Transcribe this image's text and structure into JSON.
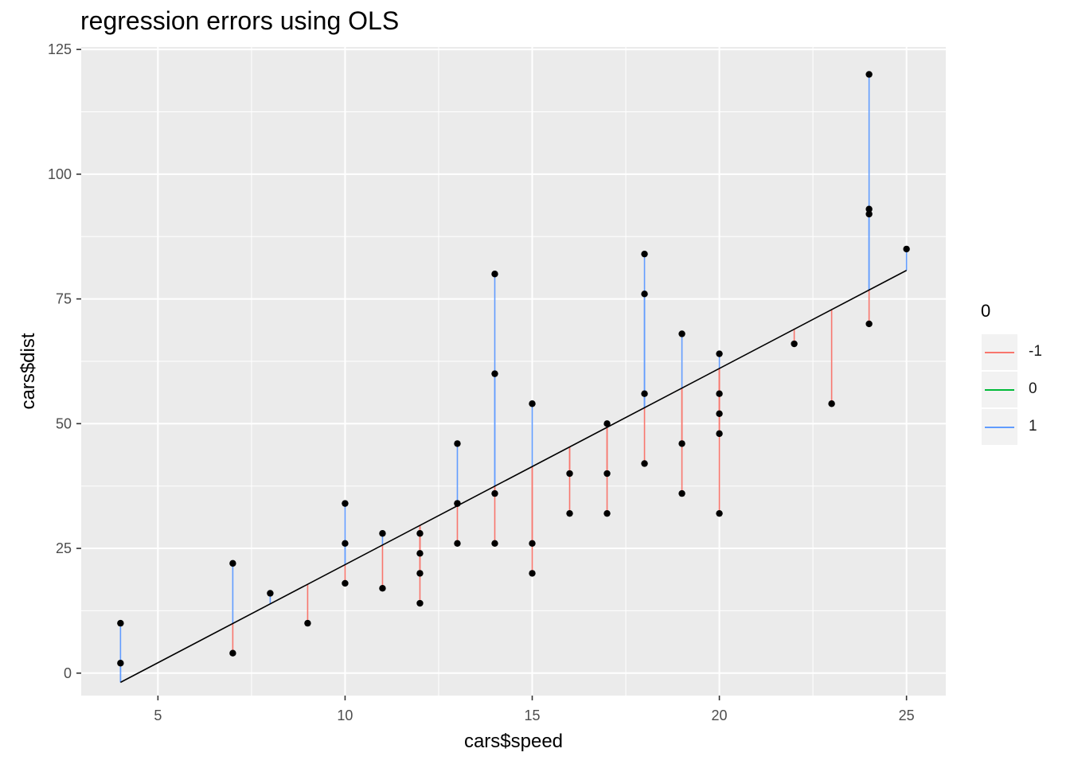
{
  "chart_data": {
    "type": "scatter",
    "title": "regression errors using OLS",
    "xlabel": "cars$speed",
    "ylabel": "cars$dist",
    "xlim": [
      2.95,
      26.05
    ],
    "ylim": [
      -4.5,
      125.5
    ],
    "x_ticks": [
      5,
      10,
      15,
      20,
      25
    ],
    "x_tick_labels": [
      "5",
      "10",
      "15",
      "20",
      "25"
    ],
    "y_ticks": [
      0,
      25,
      50,
      75,
      100,
      125
    ],
    "y_tick_labels": [
      "0",
      "25",
      "50",
      "75",
      "100",
      "125"
    ],
    "grid": true,
    "background": "#ebebeb",
    "legend": {
      "title": "0",
      "position": "right",
      "entries": [
        {
          "label": "-1",
          "color": "#f8766d"
        },
        {
          "label": "0",
          "color": "#00ba38"
        },
        {
          "label": "1",
          "color": "#619cff"
        }
      ]
    },
    "regression_line": {
      "intercept": -17.579,
      "slope": 3.932,
      "color": "#000000"
    },
    "points": {
      "color": "#000000",
      "x": [
        4,
        4,
        7,
        7,
        8,
        9,
        10,
        10,
        10,
        11,
        11,
        12,
        12,
        12,
        12,
        13,
        13,
        13,
        13,
        14,
        14,
        14,
        14,
        15,
        15,
        15,
        16,
        16,
        17,
        17,
        17,
        18,
        18,
        18,
        18,
        19,
        19,
        19,
        20,
        20,
        20,
        20,
        20,
        22,
        23,
        24,
        24,
        24,
        24,
        25
      ],
      "y": [
        2,
        10,
        4,
        22,
        16,
        10,
        18,
        26,
        34,
        17,
        28,
        14,
        20,
        24,
        28,
        26,
        34,
        34,
        46,
        26,
        36,
        60,
        80,
        20,
        26,
        54,
        32,
        40,
        32,
        40,
        50,
        42,
        56,
        76,
        84,
        36,
        46,
        68,
        32,
        48,
        52,
        56,
        64,
        66,
        54,
        70,
        92,
        93,
        120,
        85
      ]
    }
  }
}
